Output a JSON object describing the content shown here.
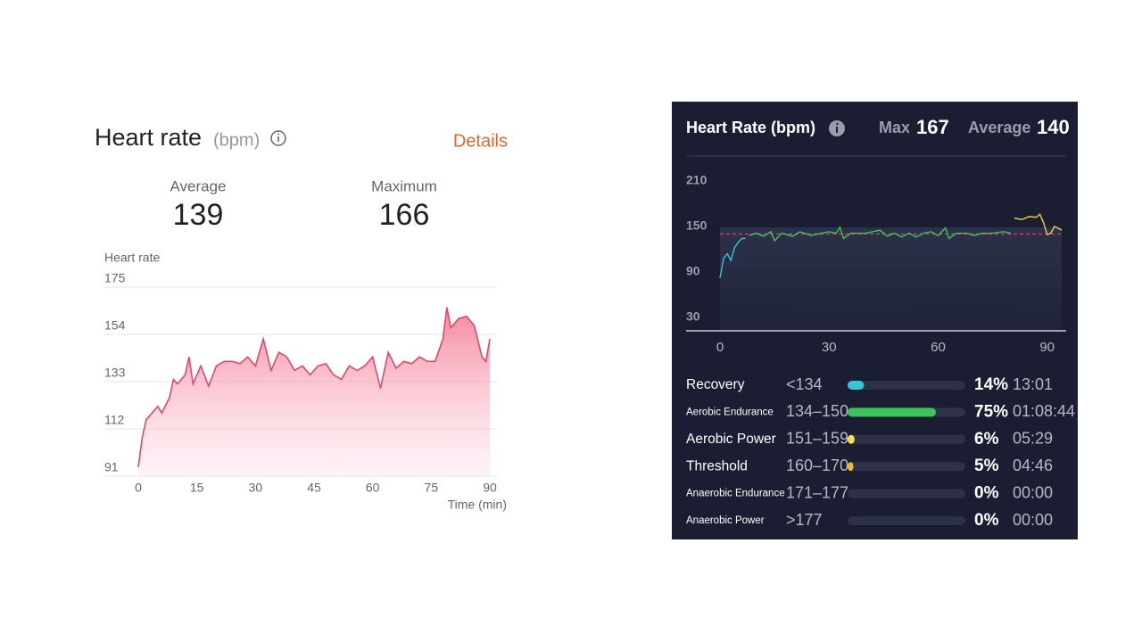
{
  "chart_data": [
    {
      "type": "area",
      "title": "Heart rate",
      "unit": "(bpm)",
      "link": "Details",
      "stats": [
        {
          "label": "Average",
          "value": 139
        },
        {
          "label": "Maximum",
          "value": 166
        }
      ],
      "y_label": "Heart rate",
      "x_label": "Time (min)",
      "color": "#e0476b",
      "x": [
        0,
        1,
        2,
        4,
        5,
        6,
        8,
        9,
        10,
        12,
        13,
        14,
        16,
        18,
        20,
        22,
        24,
        26,
        28,
        30,
        32,
        34,
        36,
        38,
        40,
        42,
        44,
        46,
        48,
        50,
        52,
        54,
        56,
        58,
        60,
        62,
        64,
        66,
        68,
        70,
        72,
        74,
        76,
        78,
        79,
        80,
        82,
        84,
        86,
        88,
        89,
        90
      ],
      "values": [
        95,
        108,
        116,
        120,
        122,
        119,
        126,
        134,
        132,
        136,
        144,
        132,
        140,
        131,
        140,
        142,
        142,
        141,
        144,
        140,
        152,
        138,
        146,
        144,
        138,
        140,
        136,
        140,
        141,
        136,
        134,
        140,
        138,
        140,
        144,
        130,
        146,
        139,
        142,
        141,
        144,
        142,
        142,
        152,
        166,
        157,
        161,
        162,
        158,
        144,
        142,
        152
      ],
      "xlim": [
        0,
        90
      ],
      "xticks": [
        0,
        15,
        30,
        45,
        60,
        75,
        90
      ],
      "ylim": [
        91,
        175
      ],
      "yticks": [
        91,
        112,
        133,
        154,
        175
      ],
      "grid": true
    },
    {
      "type": "line",
      "title": "Heart Rate (bpm)",
      "stats": [
        {
          "label": "Max",
          "value": 167
        },
        {
          "label": "Average",
          "value": 140
        }
      ],
      "x": [
        0,
        1,
        2,
        3,
        4,
        5,
        6,
        7,
        8,
        10,
        12,
        14,
        15,
        17,
        20,
        22,
        25,
        28,
        30,
        32,
        33,
        34,
        36,
        40,
        44,
        46,
        48,
        50,
        52,
        54,
        56,
        58,
        60,
        62,
        63,
        65,
        68,
        70,
        72,
        75,
        78,
        80,
        81,
        83,
        85,
        87,
        88,
        89,
        90,
        91,
        92,
        94
      ],
      "series": [
        {
          "color": "#35c6d8",
          "values": [
            82,
            108,
            114,
            105,
            122,
            129,
            134,
            134,
            null,
            null,
            null,
            null,
            null,
            null,
            null,
            null,
            null,
            null,
            null,
            null,
            null,
            null,
            null,
            null,
            null,
            null,
            null,
            null,
            null,
            null,
            null,
            null,
            null,
            null,
            null,
            null,
            null,
            null,
            null,
            null,
            null,
            null,
            null,
            null,
            null,
            null,
            null,
            null,
            null,
            null,
            null,
            null
          ]
        },
        {
          "color": "#3cc45a",
          "values": [
            null,
            null,
            null,
            null,
            null,
            null,
            null,
            null,
            138,
            141,
            137,
            143,
            131,
            141,
            137,
            143,
            138,
            141,
            143,
            141,
            149,
            134,
            141,
            141,
            145,
            137,
            141,
            136,
            141,
            136,
            141,
            143,
            138,
            148,
            134,
            141,
            141,
            138,
            141,
            141,
            143,
            141,
            null,
            null,
            null,
            null,
            null,
            null,
            null,
            null,
            null,
            null
          ]
        },
        {
          "color": "#f0cf3c",
          "values": [
            null,
            null,
            null,
            null,
            null,
            null,
            null,
            null,
            null,
            null,
            null,
            null,
            null,
            null,
            null,
            null,
            null,
            null,
            null,
            null,
            null,
            null,
            null,
            null,
            null,
            null,
            null,
            null,
            null,
            null,
            null,
            null,
            null,
            null,
            null,
            null,
            null,
            null,
            null,
            null,
            null,
            null,
            161,
            159,
            163,
            162,
            166,
            155,
            139,
            141,
            150,
            145
          ]
        }
      ],
      "xlim": [
        0,
        94
      ],
      "xticks": [
        0,
        30,
        60,
        90
      ],
      "ylim": [
        12,
        210
      ],
      "yticks": [
        30,
        90,
        150,
        210
      ],
      "zones": {
        "categories": [
          "Recovery",
          "Aerobic Endurance",
          "Aerobic Power",
          "Threshold",
          "Anaerobic Endurance",
          "Anaerobic Power"
        ],
        "ranges": [
          "<134",
          "134–150",
          "151–159",
          "160–170",
          "171–177",
          ">177"
        ],
        "values": [
          14,
          75,
          6,
          5,
          0,
          0
        ],
        "value_labels": [
          "14%",
          "75%",
          "6%",
          "5%",
          "0%",
          "0%"
        ],
        "times": [
          "13:01",
          "01:08:44",
          "05:29",
          "04:46",
          "00:00",
          "00:00"
        ],
        "colors": [
          "#35c6d8",
          "#3cc45a",
          "#f5e04a",
          "#f0b93a",
          "#f0b93a",
          "#f0b93a"
        ],
        "xlim": [
          0,
          100
        ]
      }
    }
  ]
}
